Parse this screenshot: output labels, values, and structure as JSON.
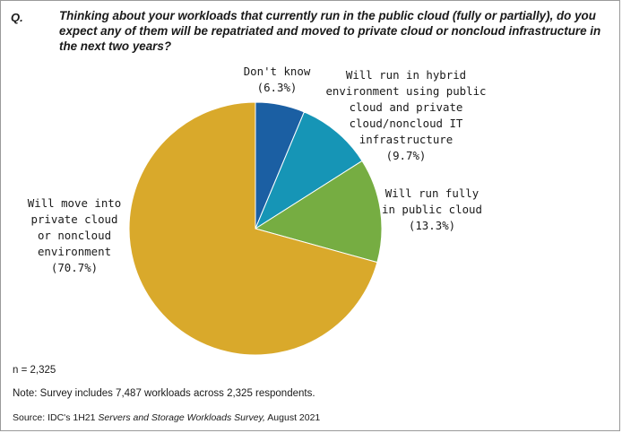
{
  "header": {
    "q_label": "Q.",
    "question": "Thinking about your workloads that currently run in the public cloud (fully or partially), do you expect any of them will be repatriated and moved to private cloud or noncloud infrastructure in the next two years?"
  },
  "chart_data": {
    "type": "pie",
    "title": "",
    "start_angle_deg": 0,
    "direction": "clockwise",
    "slices": [
      {
        "label_lines": [
          "Don't know",
          "(6.3%)"
        ],
        "value": 6.3,
        "color": "#1b5fa3"
      },
      {
        "label_lines": [
          "Will run in hybrid",
          "environment using public",
          "cloud and private",
          "cloud/noncloud IT",
          "infrastructure",
          "(9.7%)"
        ],
        "value": 9.7,
        "color": "#1695b6"
      },
      {
        "label_lines": [
          "Will run fully",
          "in public cloud",
          "(13.3%)"
        ],
        "value": 13.3,
        "color": "#76ad42"
      },
      {
        "label_lines": [
          "Will move into",
          "private cloud",
          "or noncloud",
          "environment",
          "(70.7%)"
        ],
        "value": 70.7,
        "color": "#d9a92b"
      }
    ]
  },
  "footer": {
    "n": "n = 2,325",
    "note": "Note: Survey includes 7,487 workloads across 2,325 respondents.",
    "source_prefix": "Source: IDC's 1H21 ",
    "source_title": "Servers and Storage Workloads Survey,",
    "source_suffix": " August 2021"
  }
}
